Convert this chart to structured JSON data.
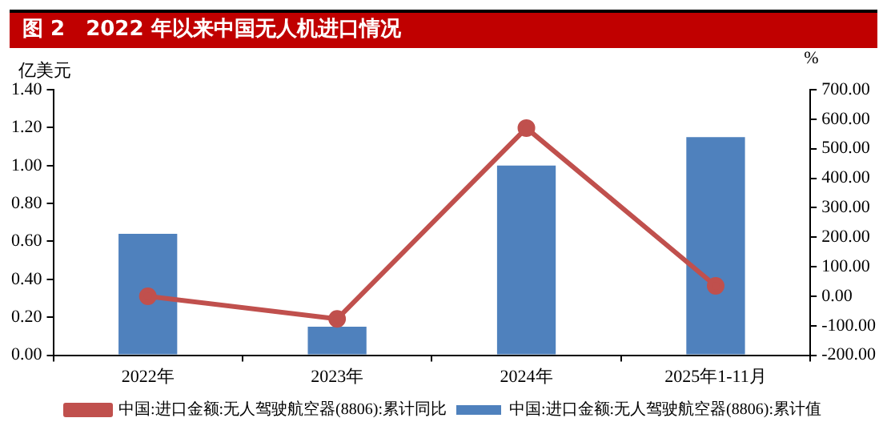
{
  "chart_data": {
    "type": "bar",
    "title": "图 2　2022 年以来中国无人机进口情况",
    "ylabel": "亿美元",
    "y2label": "%",
    "categories": [
      "2022年",
      "2023年",
      "2024年",
      "2025年1-11月"
    ],
    "series": [
      {
        "name": "中国:进口金额:无人驾驶航空器(8806):累计值",
        "color": "#4f81bd",
        "values": [
          0.64,
          0.15,
          1.0,
          1.15
        ]
      },
      {
        "name": "中国:进口金额:无人驾驶航空器(8806):累计同比",
        "type": "line",
        "axis": "y2",
        "color": "#c0504d",
        "values": [
          0,
          -77,
          570,
          35
        ]
      }
    ],
    "ylim": [
      0,
      1.4
    ],
    "yticks": [
      {
        "value": 0,
        "label": "0.00"
      },
      {
        "value": 0.2,
        "label": "0.20"
      },
      {
        "value": 0.4,
        "label": "0.40"
      },
      {
        "value": 0.6,
        "label": "0.60"
      },
      {
        "value": 0.8,
        "label": "0.80"
      },
      {
        "value": 1.0,
        "label": "1.00"
      },
      {
        "value": 1.2,
        "label": "1.20"
      },
      {
        "value": 1.4,
        "label": "1.40"
      }
    ],
    "y2lim": [
      -200,
      700
    ],
    "y2ticks": [
      {
        "value": -200,
        "label": "-200.00"
      },
      {
        "value": -100,
        "label": "-100.00"
      },
      {
        "value": 0,
        "label": "0.00"
      },
      {
        "value": 100,
        "label": "100.00"
      },
      {
        "value": 200,
        "label": "200.00"
      },
      {
        "value": 300,
        "label": "300.00"
      },
      {
        "value": 400,
        "label": "400.00"
      },
      {
        "value": 500,
        "label": "500.00"
      },
      {
        "value": 600,
        "label": "600.00"
      },
      {
        "value": 700,
        "label": "700.00"
      }
    ],
    "grid": false,
    "legend": "bottom",
    "marker": "circle",
    "line_style": "solid"
  }
}
